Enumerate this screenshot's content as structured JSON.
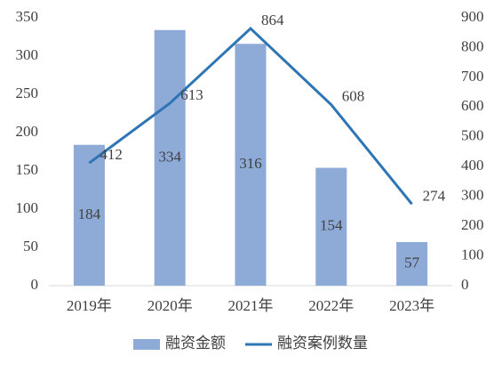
{
  "chart_data": {
    "type": "bar",
    "categories": [
      "2019年",
      "2020年",
      "2021年",
      "2022年",
      "2023年"
    ],
    "series": [
      {
        "name": "融资金额",
        "type": "bar",
        "color": "#8eaad6",
        "values": [
          184,
          334,
          316,
          154,
          57
        ]
      },
      {
        "name": "融资案例数量",
        "type": "line",
        "axis": "y2",
        "color": "#2e75b6",
        "values": [
          412,
          613,
          864,
          608,
          274
        ]
      }
    ],
    "ylim": [
      0,
      350
    ],
    "yticks": [
      0,
      50,
      100,
      150,
      200,
      250,
      300,
      350
    ],
    "y2lim": [
      0,
      900
    ],
    "y2ticks": [
      0,
      100,
      200,
      300,
      400,
      500,
      600,
      700,
      800,
      900
    ],
    "grid": false,
    "legend": "bottom"
  }
}
